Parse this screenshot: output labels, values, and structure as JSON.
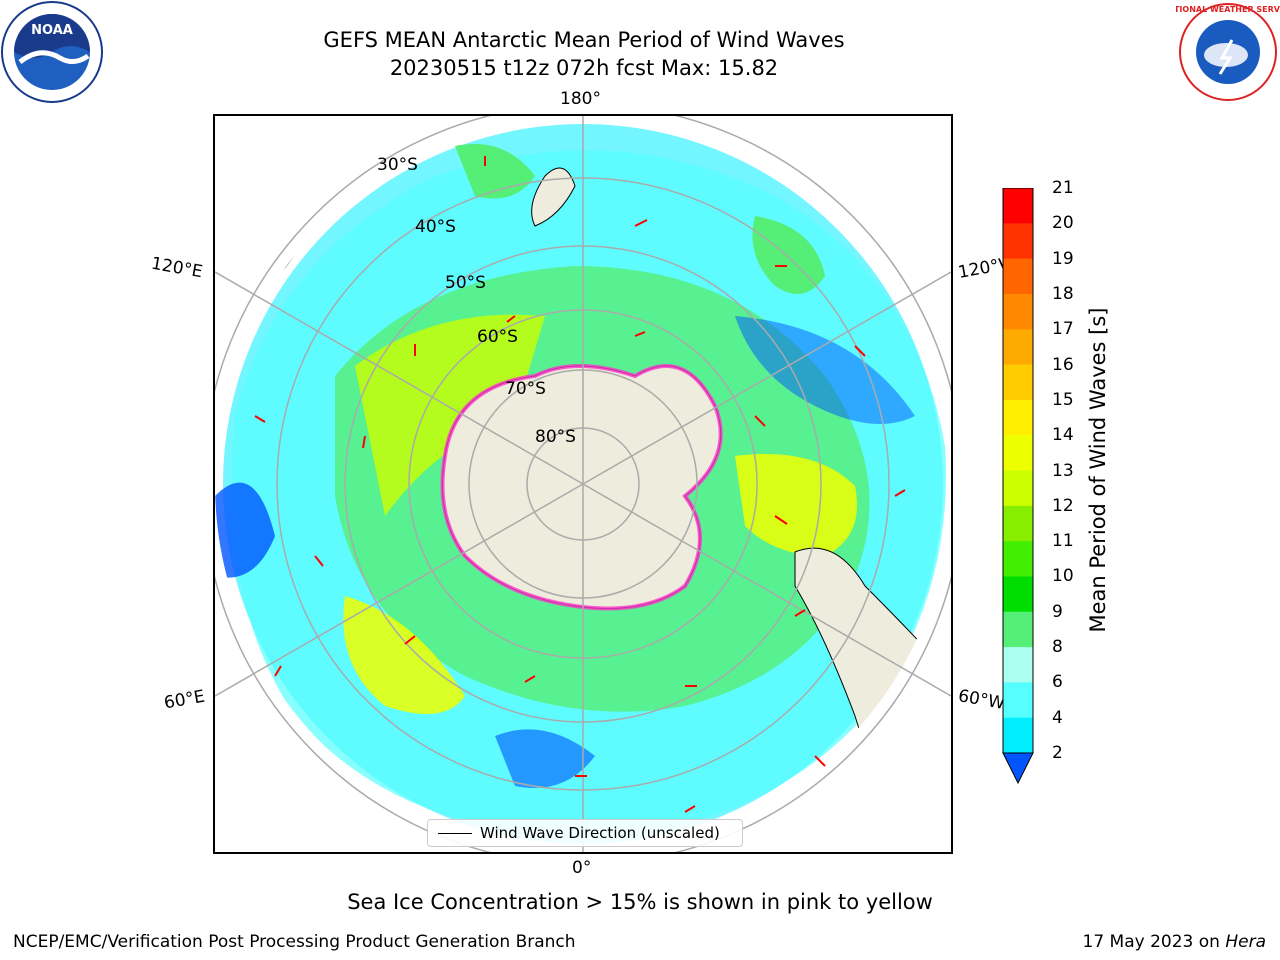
{
  "header": {
    "title_line1": "GEFS MEAN Antarctic Mean Period of Wind Waves",
    "title_line2": "20230515 t12z 072h fcst   Max: 15.82"
  },
  "logos": {
    "left": "NOAA",
    "right": "NATIONAL WEATHER SERVICE"
  },
  "map": {
    "projection": "south-polar-stereographic",
    "lon_labels": {
      "top": "180°",
      "bottom": "0°",
      "left_upper": "120°E",
      "right_upper": "120°W",
      "left_lower": "60°E",
      "right_lower": "60°W"
    },
    "lat_labels": [
      "30°S",
      "40°S",
      "50°S",
      "60°S",
      "70°S",
      "80°S"
    ],
    "legend_label": "Wind Wave Direction (unscaled)",
    "land_color": "#eeecdc",
    "arrow_color": "#ff0000"
  },
  "colorbar": {
    "label": "Mean Period of Wind Waves [s]",
    "ticks": [
      "21",
      "20",
      "19",
      "18",
      "17",
      "16",
      "15",
      "14",
      "13",
      "12",
      "11",
      "10",
      "9",
      "8",
      "6",
      "4",
      "2"
    ],
    "colors": [
      "#ff0000",
      "#ff3300",
      "#ff6600",
      "#ff8800",
      "#ffaa00",
      "#ffcc00",
      "#ffee00",
      "#eeff00",
      "#ccff00",
      "#88ee00",
      "#44ee00",
      "#00dd00",
      "#55ee77",
      "#aaffee",
      "#55ffff",
      "#00eeff",
      "#0099ff",
      "#0055ff"
    ],
    "extend": "min"
  },
  "notes": {
    "sea_ice": "Sea Ice Concentration > 15% is shown in pink to yellow",
    "footer_left": "NCEP/EMC/Verification Post Processing Product Generation Branch",
    "footer_date": "17 May 2023 on ",
    "footer_host": "Hera"
  }
}
